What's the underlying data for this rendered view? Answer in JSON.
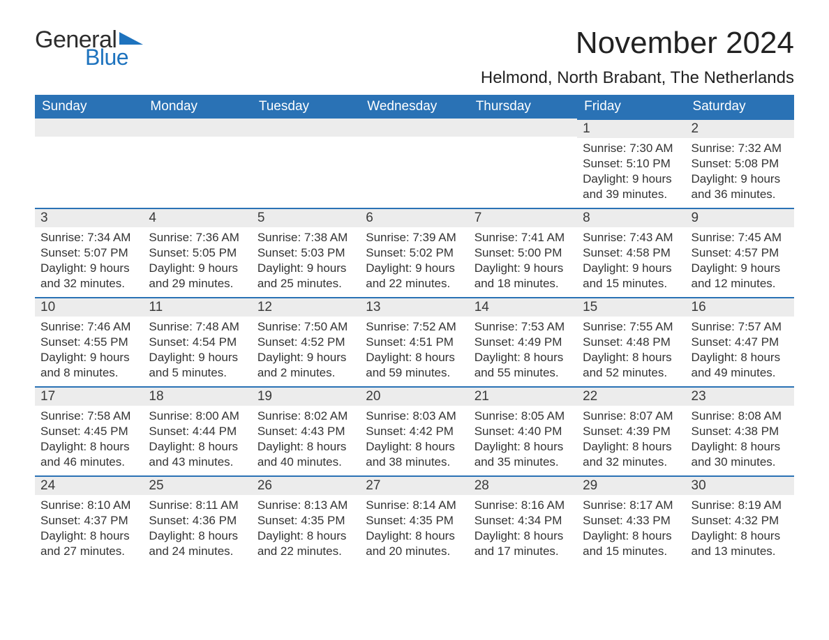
{
  "brand": {
    "text1": "General",
    "text2": "Blue",
    "text1_color": "#2d2d2d",
    "text2_color": "#1e73be",
    "triangle_color": "#1e73be"
  },
  "title": "November 2024",
  "location": "Helmond, North Brabant, The Netherlands",
  "colors": {
    "header_bg": "#2a72b5",
    "header_text": "#ffffff",
    "daynum_bg": "#ececec",
    "daynum_border": "#2a72b5",
    "body_text": "#333333",
    "page_bg": "#ffffff"
  },
  "fonts": {
    "title_size_pt": 33,
    "location_size_pt": 18,
    "header_size_pt": 14,
    "daynum_size_pt": 14,
    "body_size_pt": 13
  },
  "weekdays": [
    "Sunday",
    "Monday",
    "Tuesday",
    "Wednesday",
    "Thursday",
    "Friday",
    "Saturday"
  ],
  "weeks": [
    [
      null,
      null,
      null,
      null,
      null,
      {
        "n": "1",
        "sunrise": "Sunrise: 7:30 AM",
        "sunset": "Sunset: 5:10 PM",
        "day1": "Daylight: 9 hours",
        "day2": "and 39 minutes."
      },
      {
        "n": "2",
        "sunrise": "Sunrise: 7:32 AM",
        "sunset": "Sunset: 5:08 PM",
        "day1": "Daylight: 9 hours",
        "day2": "and 36 minutes."
      }
    ],
    [
      {
        "n": "3",
        "sunrise": "Sunrise: 7:34 AM",
        "sunset": "Sunset: 5:07 PM",
        "day1": "Daylight: 9 hours",
        "day2": "and 32 minutes."
      },
      {
        "n": "4",
        "sunrise": "Sunrise: 7:36 AM",
        "sunset": "Sunset: 5:05 PM",
        "day1": "Daylight: 9 hours",
        "day2": "and 29 minutes."
      },
      {
        "n": "5",
        "sunrise": "Sunrise: 7:38 AM",
        "sunset": "Sunset: 5:03 PM",
        "day1": "Daylight: 9 hours",
        "day2": "and 25 minutes."
      },
      {
        "n": "6",
        "sunrise": "Sunrise: 7:39 AM",
        "sunset": "Sunset: 5:02 PM",
        "day1": "Daylight: 9 hours",
        "day2": "and 22 minutes."
      },
      {
        "n": "7",
        "sunrise": "Sunrise: 7:41 AM",
        "sunset": "Sunset: 5:00 PM",
        "day1": "Daylight: 9 hours",
        "day2": "and 18 minutes."
      },
      {
        "n": "8",
        "sunrise": "Sunrise: 7:43 AM",
        "sunset": "Sunset: 4:58 PM",
        "day1": "Daylight: 9 hours",
        "day2": "and 15 minutes."
      },
      {
        "n": "9",
        "sunrise": "Sunrise: 7:45 AM",
        "sunset": "Sunset: 4:57 PM",
        "day1": "Daylight: 9 hours",
        "day2": "and 12 minutes."
      }
    ],
    [
      {
        "n": "10",
        "sunrise": "Sunrise: 7:46 AM",
        "sunset": "Sunset: 4:55 PM",
        "day1": "Daylight: 9 hours",
        "day2": "and 8 minutes."
      },
      {
        "n": "11",
        "sunrise": "Sunrise: 7:48 AM",
        "sunset": "Sunset: 4:54 PM",
        "day1": "Daylight: 9 hours",
        "day2": "and 5 minutes."
      },
      {
        "n": "12",
        "sunrise": "Sunrise: 7:50 AM",
        "sunset": "Sunset: 4:52 PM",
        "day1": "Daylight: 9 hours",
        "day2": "and 2 minutes."
      },
      {
        "n": "13",
        "sunrise": "Sunrise: 7:52 AM",
        "sunset": "Sunset: 4:51 PM",
        "day1": "Daylight: 8 hours",
        "day2": "and 59 minutes."
      },
      {
        "n": "14",
        "sunrise": "Sunrise: 7:53 AM",
        "sunset": "Sunset: 4:49 PM",
        "day1": "Daylight: 8 hours",
        "day2": "and 55 minutes."
      },
      {
        "n": "15",
        "sunrise": "Sunrise: 7:55 AM",
        "sunset": "Sunset: 4:48 PM",
        "day1": "Daylight: 8 hours",
        "day2": "and 52 minutes."
      },
      {
        "n": "16",
        "sunrise": "Sunrise: 7:57 AM",
        "sunset": "Sunset: 4:47 PM",
        "day1": "Daylight: 8 hours",
        "day2": "and 49 minutes."
      }
    ],
    [
      {
        "n": "17",
        "sunrise": "Sunrise: 7:58 AM",
        "sunset": "Sunset: 4:45 PM",
        "day1": "Daylight: 8 hours",
        "day2": "and 46 minutes."
      },
      {
        "n": "18",
        "sunrise": "Sunrise: 8:00 AM",
        "sunset": "Sunset: 4:44 PM",
        "day1": "Daylight: 8 hours",
        "day2": "and 43 minutes."
      },
      {
        "n": "19",
        "sunrise": "Sunrise: 8:02 AM",
        "sunset": "Sunset: 4:43 PM",
        "day1": "Daylight: 8 hours",
        "day2": "and 40 minutes."
      },
      {
        "n": "20",
        "sunrise": "Sunrise: 8:03 AM",
        "sunset": "Sunset: 4:42 PM",
        "day1": "Daylight: 8 hours",
        "day2": "and 38 minutes."
      },
      {
        "n": "21",
        "sunrise": "Sunrise: 8:05 AM",
        "sunset": "Sunset: 4:40 PM",
        "day1": "Daylight: 8 hours",
        "day2": "and 35 minutes."
      },
      {
        "n": "22",
        "sunrise": "Sunrise: 8:07 AM",
        "sunset": "Sunset: 4:39 PM",
        "day1": "Daylight: 8 hours",
        "day2": "and 32 minutes."
      },
      {
        "n": "23",
        "sunrise": "Sunrise: 8:08 AM",
        "sunset": "Sunset: 4:38 PM",
        "day1": "Daylight: 8 hours",
        "day2": "and 30 minutes."
      }
    ],
    [
      {
        "n": "24",
        "sunrise": "Sunrise: 8:10 AM",
        "sunset": "Sunset: 4:37 PM",
        "day1": "Daylight: 8 hours",
        "day2": "and 27 minutes."
      },
      {
        "n": "25",
        "sunrise": "Sunrise: 8:11 AM",
        "sunset": "Sunset: 4:36 PM",
        "day1": "Daylight: 8 hours",
        "day2": "and 24 minutes."
      },
      {
        "n": "26",
        "sunrise": "Sunrise: 8:13 AM",
        "sunset": "Sunset: 4:35 PM",
        "day1": "Daylight: 8 hours",
        "day2": "and 22 minutes."
      },
      {
        "n": "27",
        "sunrise": "Sunrise: 8:14 AM",
        "sunset": "Sunset: 4:35 PM",
        "day1": "Daylight: 8 hours",
        "day2": "and 20 minutes."
      },
      {
        "n": "28",
        "sunrise": "Sunrise: 8:16 AM",
        "sunset": "Sunset: 4:34 PM",
        "day1": "Daylight: 8 hours",
        "day2": "and 17 minutes."
      },
      {
        "n": "29",
        "sunrise": "Sunrise: 8:17 AM",
        "sunset": "Sunset: 4:33 PM",
        "day1": "Daylight: 8 hours",
        "day2": "and 15 minutes."
      },
      {
        "n": "30",
        "sunrise": "Sunrise: 8:19 AM",
        "sunset": "Sunset: 4:32 PM",
        "day1": "Daylight: 8 hours",
        "day2": "and 13 minutes."
      }
    ]
  ]
}
